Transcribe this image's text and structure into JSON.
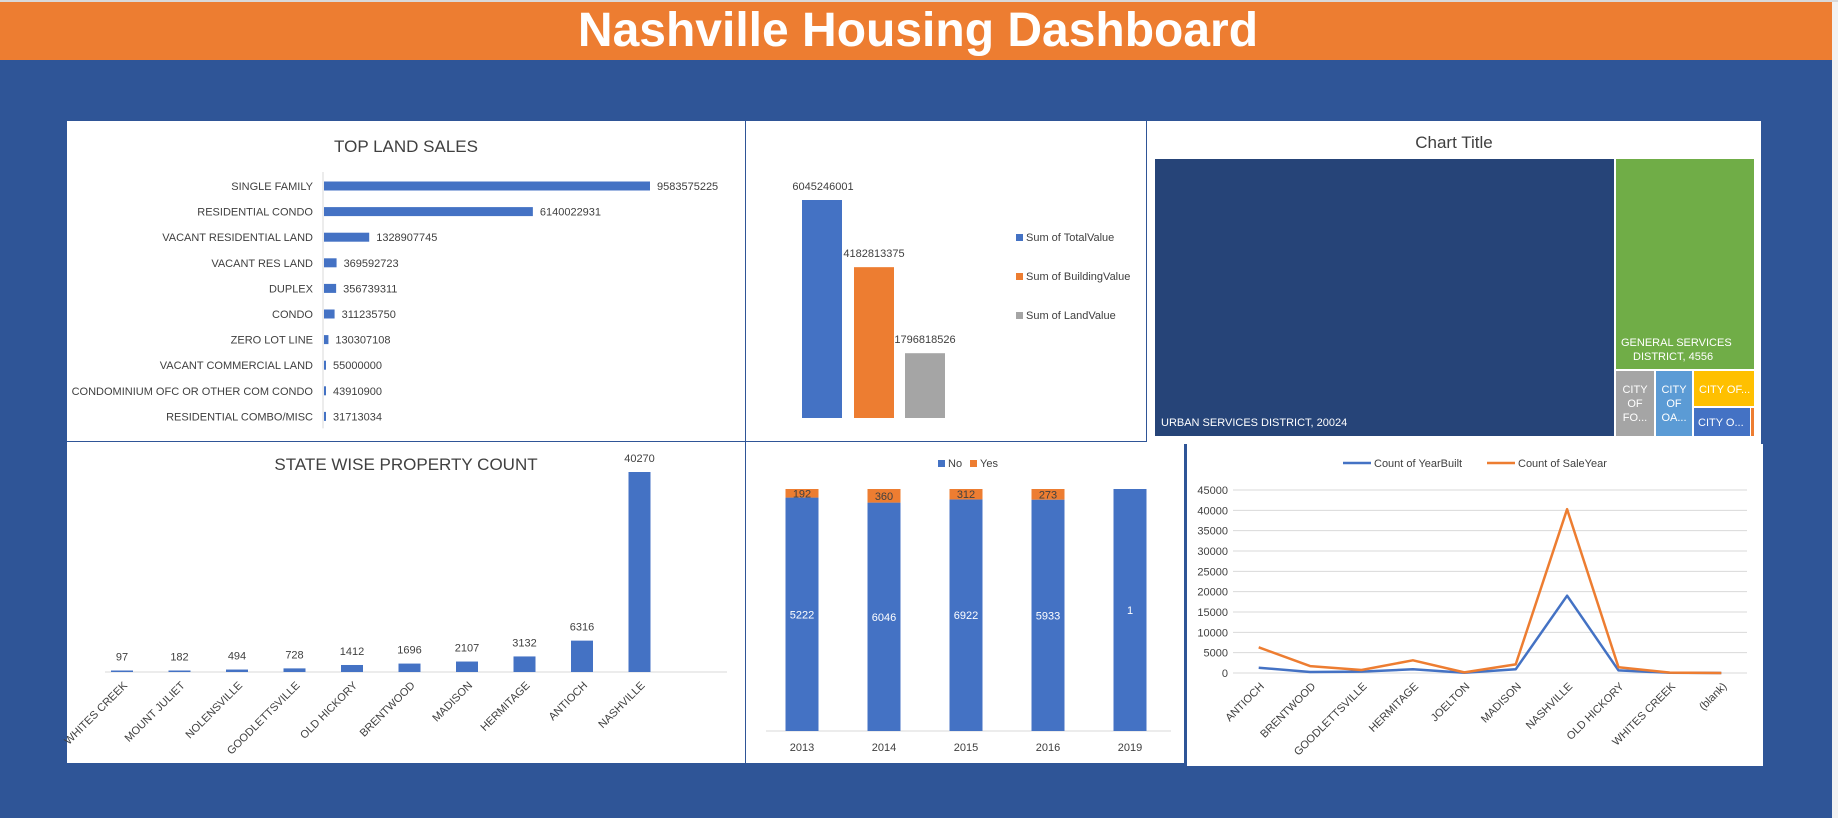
{
  "header": {
    "title": "Nashville Housing Dashboard"
  },
  "colors": {
    "blue": "#4472c4",
    "orange": "#ed7d31",
    "gray": "#a5a5a5",
    "green": "#70ad47",
    "yellow": "#ffc000",
    "navy": "#264478",
    "light_blue": "#5b9bd5",
    "background": "#2f5597"
  },
  "land_sales": {
    "chart_data": {
      "type": "bar",
      "orientation": "horizontal",
      "title": "TOP LAND SALES",
      "categories": [
        "SINGLE FAMILY",
        "RESIDENTIAL CONDO",
        "VACANT RESIDENTIAL LAND",
        "VACANT RES LAND",
        "DUPLEX",
        "CONDO",
        "ZERO LOT LINE",
        "VACANT COMMERCIAL LAND",
        "CONDOMINIUM OFC OR OTHER COM CONDO",
        "RESIDENTIAL COMBO/MISC"
      ],
      "values": [
        9583575225,
        6140022931,
        1328907745,
        369592723,
        356739311,
        311235750,
        130307108,
        55000000,
        43910900,
        31713034
      ],
      "labels": [
        "9583575225",
        "6140022931",
        "1328907745",
        "369592723",
        "356739311",
        "311235750",
        "130307108",
        "55000000",
        "43910900",
        "31713034"
      ],
      "grid": false
    }
  },
  "value_sums": {
    "chart_data": {
      "type": "bar",
      "series": [
        {
          "name": "Sum of TotalValue",
          "values": [
            6045246001
          ],
          "label": "6045246001"
        },
        {
          "name": "Sum of BuildingValue",
          "values": [
            4182813375
          ],
          "label": "4182813375"
        },
        {
          "name": "Sum of LandValue",
          "values": [
            1796818526
          ],
          "label": "1796818526"
        }
      ],
      "legend": "right",
      "grid": false
    }
  },
  "treemap": {
    "chart_data": {
      "type": "treemap",
      "title": "Chart Title",
      "items": [
        {
          "label": "URBAN SERVICES DISTRICT, 20024",
          "value": 20024
        },
        {
          "label": "GENERAL SERVICES DISTRICT, 4556",
          "value": 4556
        },
        {
          "label": "CITY OF FO...",
          "value": null
        },
        {
          "label": "CITY OF OA...",
          "value": null
        },
        {
          "label": "CITY OF...",
          "value": null
        },
        {
          "label": "CITY O...",
          "value": null
        }
      ]
    }
  },
  "city_count": {
    "chart_data": {
      "type": "bar",
      "title": "STATE WISE PROPERTY COUNT",
      "categories": [
        "WHITES CREEK",
        "MOUNT JULIET",
        "NOLENSVILLE",
        "GOODLETTSVILLE",
        "OLD HICKORY",
        "BRENTWOOD",
        "MADISON",
        "HERMITAGE",
        "ANTIOCH",
        "NASHVILLE"
      ],
      "values": [
        97,
        182,
        494,
        728,
        1412,
        1696,
        2107,
        3132,
        6316,
        40270
      ],
      "labels": [
        "97",
        "182",
        "494",
        "728",
        "1412",
        "1696",
        "2107",
        "3132",
        "6316",
        "40270"
      ],
      "grid": false
    }
  },
  "vacant_by_year": {
    "chart_data": {
      "type": "bar",
      "stacked": true,
      "categories": [
        "2013",
        "2014",
        "2015",
        "2016",
        "2019"
      ],
      "series": [
        {
          "name": "No",
          "values": [
            5222,
            6046,
            6922,
            5933,
            1
          ],
          "labels": [
            "5222",
            "6046",
            "6922",
            "5933",
            "1"
          ]
        },
        {
          "name": "Yes",
          "values": [
            192,
            360,
            312,
            273,
            0
          ],
          "labels": [
            "192",
            "360",
            "312",
            "273",
            ""
          ]
        }
      ],
      "legend": "top",
      "grid": false
    }
  },
  "line_chart": {
    "chart_data": {
      "type": "line",
      "categories": [
        "ANTIOCH",
        "BRENTWOOD",
        "GOODLETTSVILLE",
        "HERMITAGE",
        "JOELTON",
        "MADISON",
        "NASHVILLE",
        "OLD HICKORY",
        "WHITES CREEK",
        "(blank)"
      ],
      "series": [
        {
          "name": "Count of YearBuilt",
          "values": [
            1300,
            250,
            350,
            900,
            80,
            900,
            19000,
            650,
            60,
            0
          ]
        },
        {
          "name": "Count of SaleYear",
          "values": [
            6316,
            1696,
            728,
            3132,
            150,
            2107,
            40270,
            1412,
            97,
            0
          ]
        }
      ],
      "yticks": [
        "0",
        "5000",
        "10000",
        "15000",
        "20000",
        "25000",
        "30000",
        "35000",
        "40000",
        "45000"
      ],
      "ylim": [
        0,
        45000
      ],
      "legend": "top",
      "grid": true
    }
  }
}
